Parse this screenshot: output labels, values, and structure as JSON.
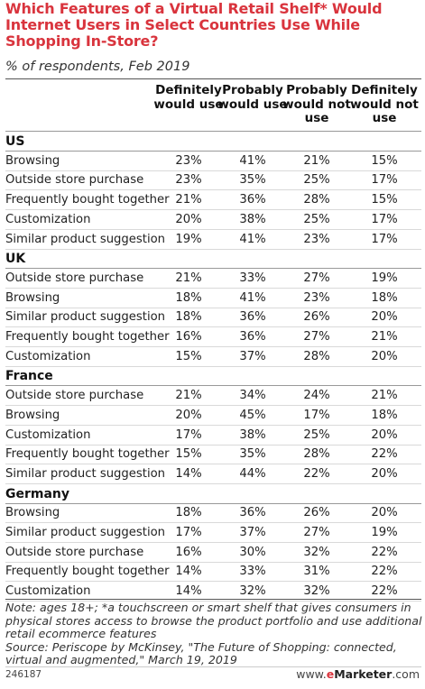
{
  "title": "Which Features of a Virtual Retail Shelf* Would Internet Users in Select Countries Use While Shopping In-Store?",
  "subtitle": "% of respondents, Feb 2019",
  "chart_data": {
    "type": "table",
    "columns": [
      "Definitely would use",
      "Probably would use",
      "Probably would not use",
      "Definitely would not use"
    ],
    "groups": [
      {
        "name": "US",
        "rows": [
          {
            "label": "Browsing",
            "values": [
              "23%",
              "41%",
              "21%",
              "15%"
            ]
          },
          {
            "label": "Outside store purchase",
            "values": [
              "23%",
              "35%",
              "25%",
              "17%"
            ]
          },
          {
            "label": "Frequently bought together",
            "values": [
              "21%",
              "36%",
              "28%",
              "15%"
            ]
          },
          {
            "label": "Customization",
            "values": [
              "20%",
              "38%",
              "25%",
              "17%"
            ]
          },
          {
            "label": "Similar product suggestion",
            "values": [
              "19%",
              "41%",
              "23%",
              "17%"
            ]
          }
        ]
      },
      {
        "name": "UK",
        "rows": [
          {
            "label": "Outside store purchase",
            "values": [
              "21%",
              "33%",
              "27%",
              "19%"
            ]
          },
          {
            "label": "Browsing",
            "values": [
              "18%",
              "41%",
              "23%",
              "18%"
            ]
          },
          {
            "label": "Similar product suggestion",
            "values": [
              "18%",
              "36%",
              "26%",
              "20%"
            ]
          },
          {
            "label": "Frequently bought together",
            "values": [
              "16%",
              "36%",
              "27%",
              "21%"
            ]
          },
          {
            "label": "Customization",
            "values": [
              "15%",
              "37%",
              "28%",
              "20%"
            ]
          }
        ]
      },
      {
        "name": "France",
        "rows": [
          {
            "label": "Outside store purchase",
            "values": [
              "21%",
              "34%",
              "24%",
              "21%"
            ]
          },
          {
            "label": "Browsing",
            "values": [
              "20%",
              "45%",
              "17%",
              "18%"
            ]
          },
          {
            "label": "Customization",
            "values": [
              "17%",
              "38%",
              "25%",
              "20%"
            ]
          },
          {
            "label": "Frequently bought together",
            "values": [
              "15%",
              "35%",
              "28%",
              "22%"
            ]
          },
          {
            "label": "Similar product suggestion",
            "values": [
              "14%",
              "44%",
              "22%",
              "20%"
            ]
          }
        ]
      },
      {
        "name": "Germany",
        "rows": [
          {
            "label": "Browsing",
            "values": [
              "18%",
              "36%",
              "26%",
              "20%"
            ]
          },
          {
            "label": "Similar product suggestion",
            "values": [
              "17%",
              "37%",
              "27%",
              "19%"
            ]
          },
          {
            "label": "Outside store purchase",
            "values": [
              "16%",
              "30%",
              "32%",
              "22%"
            ]
          },
          {
            "label": "Frequently bought together",
            "values": [
              "14%",
              "33%",
              "31%",
              "22%"
            ]
          },
          {
            "label": "Customization",
            "values": [
              "14%",
              "32%",
              "32%",
              "22%"
            ]
          }
        ]
      }
    ]
  },
  "note": "Note: ages 18+; *a touchscreen or smart shelf that gives consumers in physical stores access to browse the product portfolio and use additional retail ecommerce features",
  "source": "Source: Periscope by McKinsey, \"The Future of Shopping: connected, virtual and augmented,\" March 19, 2019",
  "chart_id": "246187",
  "brand": {
    "prefix": "www.",
    "accent": "e",
    "name": "Marketer",
    "suffix": ".com"
  },
  "colors": {
    "title": "#d9343d",
    "text": "#222222",
    "rule": "#999999"
  }
}
